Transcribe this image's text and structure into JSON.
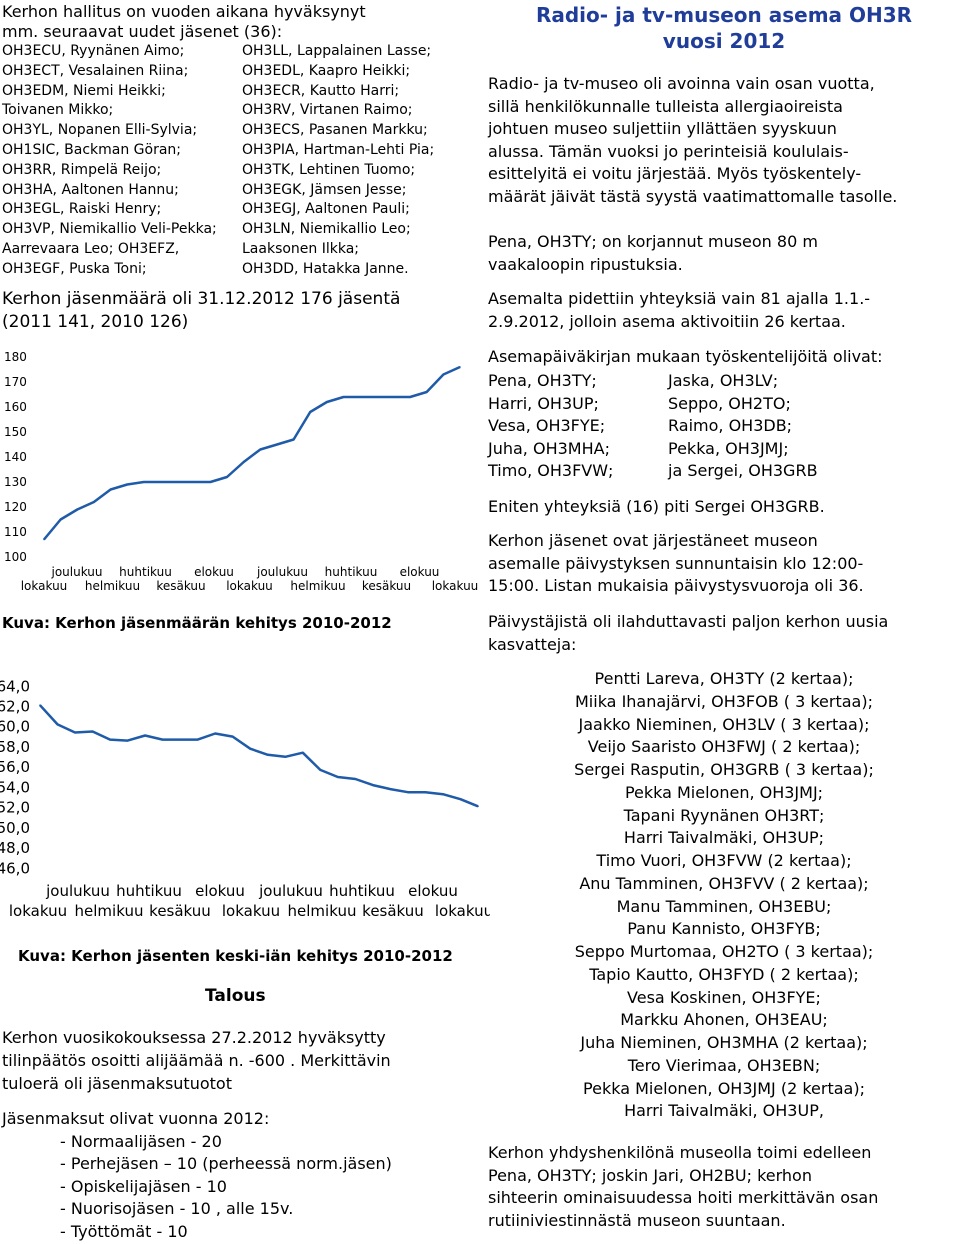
{
  "left": {
    "intro_line1": "Kerhon hallitus on vuoden aikana hyväksynyt",
    "intro_line2": "mm. seuraavat uudet jäsenet (36):",
    "members": [
      [
        "OH3ECU, Ryynänen Aimo;",
        "OH3LL, Lappalainen Lasse;"
      ],
      [
        "OH3ECT, Vesalainen Riina;",
        "OH3EDL, Kaapro Heikki;"
      ],
      [
        "OH3EDM, Niemi Heikki;",
        "OH3ECR, Kautto Harri;"
      ],
      [
        "Toivanen Mikko;",
        "OH3RV, Virtanen Raimo;"
      ],
      [
        "OH3YL, Nopanen Elli-Sylvia;",
        "OH3ECS, Pasanen Markku;"
      ],
      [
        "OH1SIC, Backman Göran;",
        "OH3PIA, Hartman-Lehti Pia;"
      ],
      [
        "OH3RR, Rimpelä Reijo;",
        "OH3TK, Lehtinen Tuomo;"
      ],
      [
        "OH3HA, Aaltonen Hannu;",
        "OH3EGK, Jämsen Jesse;"
      ],
      [
        "OH3EGL, Raiski Henry;",
        "OH3EGJ, Aaltonen Pauli;"
      ],
      [
        "OH3VP, Niemikallio Veli-Pekka;",
        "OH3LN, Niemikallio Leo;"
      ],
      [
        "Aarrevaara Leo; OH3EFZ,",
        "Laaksonen Ilkka;"
      ],
      [
        "OH3EGF, Puska Toni;",
        "OH3DD, Hatakka Janne."
      ]
    ],
    "count_line1": "Kerhon jäsenmäärä oli 31.12.2012 176 jäsentä",
    "count_line2": "(2011 141, 2010 126)",
    "caption1": "Kuva: Kerhon jäsenmäärän kehitys 2010-2012",
    "caption2": "Kuva: Kerhon jäsenten keski-iän kehitys 2010-2012",
    "talous_heading": "Talous",
    "talous_line1": "Kerhon vuosikokouksessa 27.2.2012 hyväksytty",
    "talous_line2": "tilinpäätös osoitti alijäämää n. -600 . Merkittävin",
    "talous_line3": "tuloerä oli jäsenmaksutuotot",
    "fees_title": "Jäsenmaksut olivat vuonna 2012:",
    "fees": [
      "- Normaalijäsen - 20",
      "- Perhejäsen – 10 (perheessä norm.jäsen)",
      "- Opiskelijajäsen - 10",
      "- Nuorisojäsen - 10 , alle 15v.",
      "- Työttömät - 10"
    ]
  },
  "chart_data": [
    {
      "type": "line",
      "yticks": [
        "180",
        "170",
        "160",
        "150",
        "140",
        "130",
        "120",
        "110",
        "100"
      ],
      "ylim": [
        100,
        180
      ],
      "xlabels_top": [
        "joulukuu",
        "huhtikuu",
        "elokuu",
        "joulukuu",
        "huhtikuu",
        "elokuu"
      ],
      "xlabels_bottom": [
        "lokakuu",
        "helmikuu",
        "kesäkuu",
        "lokakuu",
        "helmikuu",
        "kesäkuu",
        "lokakuu"
      ],
      "values": [
        107,
        115,
        119,
        122,
        127,
        129,
        130,
        130,
        130,
        130,
        130,
        132,
        138,
        143,
        145,
        147,
        158,
        162,
        164,
        164,
        164,
        164,
        164,
        166,
        173,
        176
      ],
      "line_color": "#1f5ba8"
    },
    {
      "type": "line",
      "yticks": [
        "64,0",
        "62,0",
        "60,0",
        "58,0",
        "56,0",
        "54,0",
        "52,0",
        "50,0",
        "48,0",
        "46,0"
      ],
      "ylim": [
        46,
        64
      ],
      "xlabels_top": [
        "joulukuu",
        "huhtikuu",
        "elokuu",
        "joulukuu",
        "huhtikuu",
        "elokuu"
      ],
      "xlabels_bottom": [
        "lokakuu",
        "helmikuu",
        "kesäkuu",
        "lokakuu",
        "helmikuu",
        "kesäkuu",
        "lokakuu"
      ],
      "values": [
        62.1,
        60.2,
        59.4,
        59.5,
        58.7,
        58.6,
        59.1,
        58.7,
        58.7,
        58.7,
        59.3,
        59.0,
        57.8,
        57.2,
        57.0,
        57.4,
        55.7,
        55.0,
        54.8,
        54.2,
        53.8,
        53.5,
        53.5,
        53.3,
        52.8,
        52.1
      ],
      "line_color": "#1f5ba8"
    }
  ],
  "right": {
    "title_line1": "Radio- ja tv-museon asema OH3R",
    "title_line2": "vuosi 2012",
    "title_color": "#1f3d99",
    "p1": [
      "Radio- ja tv-museo oli avoinna vain osan vuotta,",
      "sillä henkilökunnalle tulleista allergiaoireista",
      "johtuen museo suljettiin yllättäen syyskuun",
      "alussa. Tämän vuoksi jo perinteisiä koululais-",
      "esittelyitä ei voitu järjestää. Myös työskentely-",
      "määrät jäivät tästä syystä vaatimattomalle tasolle."
    ],
    "p2": [
      "Pena, OH3TY; on korjannut museon 80 m",
      "vaakaloopin ripustuksia."
    ],
    "p3": [
      "Asemalta pidettiin yhteyksiä vain 81 ajalla 1.1.-",
      "2.9.2012, jolloin asema aktivoitiin 26 kertaa."
    ],
    "p4_title": "Asemapäiväkirjan mukaan työskentelijöitä olivat:",
    "workers": [
      [
        "Pena, OH3TY;",
        "Jaska, OH3LV;"
      ],
      [
        "Harri, OH3UP;",
        "Seppo, OH2TO;"
      ],
      [
        "Vesa, OH3FYE;",
        "Raimo, OH3DB;"
      ],
      [
        "Juha, OH3MHA;",
        "Pekka, OH3JMJ;"
      ],
      [
        "Timo, OH3FVW;",
        "ja Sergei, OH3GRB"
      ]
    ],
    "p5": "Eniten yhteyksiä (16) piti Sergei OH3GRB.",
    "p6": [
      "Kerhon jäsenet ovat järjestäneet museon",
      "asemalle päivystyksen sunnuntaisin klo 12:00-",
      "15:00. Listan mukaisia päivystysvuoroja oli 36."
    ],
    "p7": [
      "Päivystäjistä oli ilahduttavasti paljon kerhon uusia",
      "kasvatteja:"
    ],
    "volunteers": [
      "Pentti Lareva, OH3TY (2 kertaa);",
      "Miika Ihanajärvi, OH3FOB ( 3 kertaa);",
      "Jaakko Nieminen, OH3LV ( 3 kertaa);",
      "Veijo Saaristo OH3FWJ ( 2 kertaa);",
      "Sergei Rasputin, OH3GRB ( 3 kertaa);",
      "Pekka Mielonen, OH3JMJ;",
      "Tapani Ryynänen OH3RT;",
      "Harri Taivalmäki, OH3UP;",
      "Timo Vuori, OH3FVW (2 kertaa);",
      "Anu Tamminen, OH3FVV ( 2 kertaa);",
      "Manu Tamminen, OH3EBU;",
      "Panu Kannisto, OH3FYB;",
      "Seppo Murtomaa, OH2TO ( 3 kertaa);",
      "Tapio Kautto, OH3FYD ( 2 kertaa);",
      "Vesa Koskinen, OH3FYE;",
      "Markku Ahonen, OH3EAU;",
      "Juha Nieminen, OH3MHA (2 kertaa);",
      "Tero Vierimaa, OH3EBN;",
      "Pekka Mielonen, OH3JMJ (2 kertaa);",
      "Harri Taivalmäki, OH3UP,"
    ],
    "p8": [
      "Kerhon yhdyshenkilönä museolla toimi edelleen",
      "Pena, OH3TY; joskin Jari, OH2BU; kerhon",
      "sihteerin ominaisuudessa hoiti merkittävän osan",
      "rutiiniviestinnästä museon suuntaan."
    ]
  }
}
